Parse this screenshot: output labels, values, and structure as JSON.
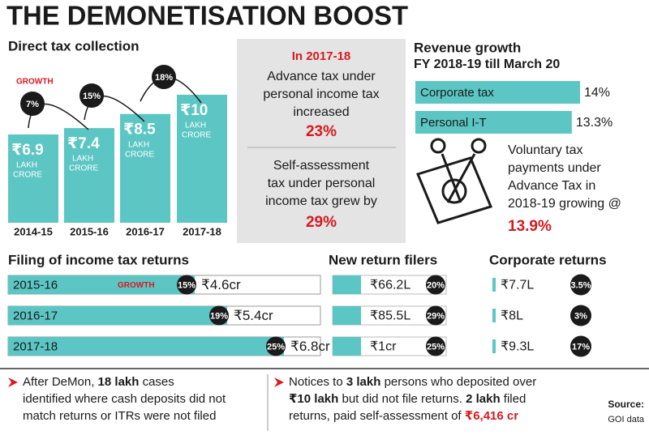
{
  "title": "THE DEMONETISATION BOOST",
  "direct_tax": {
    "heading": "Direct tax collection",
    "growth_label": "GROWTH",
    "unit_label": [
      "LAKH",
      "CRORE"
    ],
    "categories": [
      "2014-15",
      "2015-16",
      "2016-17",
      "2017-18"
    ],
    "values": [
      6.9,
      7.4,
      8.5,
      10
    ],
    "value_labels": [
      "₹6.9",
      "₹7.4",
      "₹8.5",
      "₹10"
    ],
    "growth": [
      "7%",
      "15%",
      "18%"
    ]
  },
  "highlight": {
    "heading": "In 2017-18",
    "block1": [
      "Advance tax under",
      "personal income tax",
      "increased"
    ],
    "value1": "23%",
    "block2": [
      "Self-assessment",
      "tax under personal",
      "income tax grew by"
    ],
    "value2": "29%"
  },
  "revenue_growth": {
    "heading": [
      "Revenue growth",
      "FY 2018-19 till March 20"
    ],
    "categories": [
      "Corporate tax",
      "Personal I-T"
    ],
    "values": [
      14,
      13.3
    ],
    "value_labels": [
      "14%",
      "13.3%"
    ]
  },
  "voluntary": {
    "lines": [
      "Voluntary tax",
      "payments under",
      "Advance Tax in",
      "2018-19 growing @"
    ],
    "value": "13.9%"
  },
  "filing": {
    "heading": "Filing of income tax returns",
    "growth_label": "GROWTH",
    "categories": [
      "2015-16",
      "2016-17",
      "2017-18"
    ],
    "values": [
      4.6,
      5.4,
      6.8
    ],
    "value_labels": [
      "₹4.6cr",
      "₹5.4cr",
      "₹6.8cr"
    ],
    "growth": [
      "15%",
      "19%",
      "25%"
    ]
  },
  "new_filers": {
    "heading": "New return filers",
    "value_labels": [
      "₹66.2L",
      "₹85.5L",
      "₹1cr"
    ],
    "growth": [
      "20%",
      "29%",
      "25%"
    ]
  },
  "corporate_returns": {
    "heading": "Corporate returns",
    "value_labels": [
      "₹7.7L",
      "₹8L",
      "₹9.3L"
    ],
    "growth": [
      "3.5%",
      "3%",
      "17%"
    ]
  },
  "notes": [
    [
      [
        {
          "text": "After DeMon, "
        },
        {
          "text": "18 lakh",
          "bold": true
        },
        {
          "text": " cases"
        }
      ],
      [
        {
          "text": "identified where cash deposits did not"
        }
      ],
      [
        {
          "text": "match returns or ITRs were not filed"
        }
      ]
    ],
    [
      [
        {
          "text": "Notices to "
        },
        {
          "text": "3 lakh",
          "bold": true
        },
        {
          "text": " persons who deposited over"
        }
      ],
      [
        {
          "text": "₹10 lakh",
          "bold": true
        },
        {
          "text": " but did not file returns. "
        },
        {
          "text": "2 lakh",
          "bold": true
        },
        {
          "text": " filed"
        }
      ],
      [
        {
          "text": "returns, paid self-assessment of "
        },
        {
          "text": "₹6,416 cr",
          "bold": true,
          "red": true
        }
      ]
    ]
  ],
  "source": {
    "label": "Source:",
    "text": "GOI data"
  }
}
